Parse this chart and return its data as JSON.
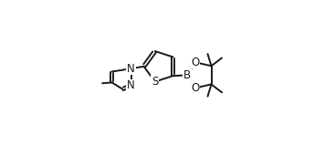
{
  "bg_color": "#ffffff",
  "line_color": "#1a1a1a",
  "line_width": 1.4,
  "font_size": 7.5,
  "figsize": [
    3.44,
    1.6
  ],
  "dpi": 100,
  "xlim": [
    0.0,
    1.0
  ],
  "ylim": [
    0.0,
    1.0
  ]
}
